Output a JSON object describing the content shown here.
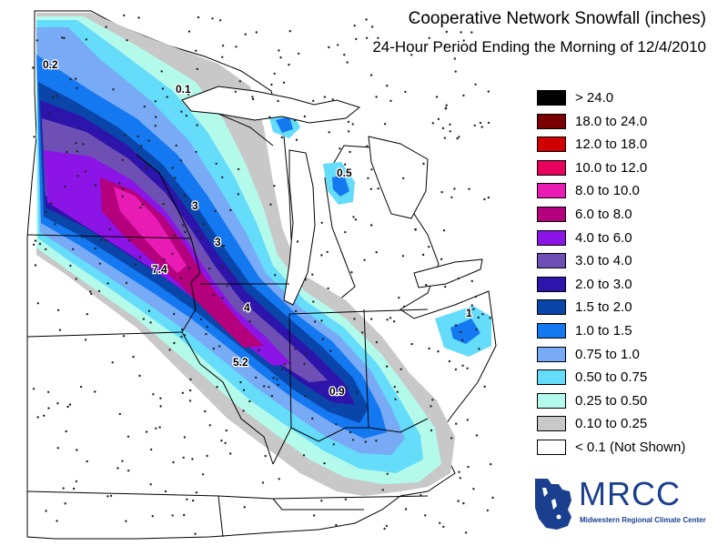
{
  "header": {
    "title": "Cooperative Network Snowfall (inches)",
    "subtitle": "24-Hour Period Ending the Morning of 12/4/2010"
  },
  "legend": {
    "items": [
      {
        "label": "> 24.0",
        "color": "#000000"
      },
      {
        "label": "18.0 to 24.0",
        "color": "#7a0000"
      },
      {
        "label": "12.0 to 18.0",
        "color": "#d10000"
      },
      {
        "label": "10.0 to 12.0",
        "color": "#e8005a"
      },
      {
        "label": "8.0 to 10.0",
        "color": "#e81cb4"
      },
      {
        "label": "6.0 to 8.0",
        "color": "#b4007d"
      },
      {
        "label": "4.0 to 6.0",
        "color": "#8c14e6"
      },
      {
        "label": "3.0 to 4.0",
        "color": "#6e50b4"
      },
      {
        "label": "2.0 to 3.0",
        "color": "#2d14aa"
      },
      {
        "label": "1.5 to 2.0",
        "color": "#0a46aa"
      },
      {
        "label": "1.0 to 1.5",
        "color": "#1478f0"
      },
      {
        "label": "0.75 to 1.0",
        "color": "#78aaf5"
      },
      {
        "label": "0.50 to 0.75",
        "color": "#64dcfa"
      },
      {
        "label": "0.25 to 0.50",
        "color": "#b4faeb"
      },
      {
        "label": "0.10 to 0.25",
        "color": "#c8c8c8"
      },
      {
        "label": "< 0.1 (Not Shown)",
        "color": "#ffffff"
      }
    ]
  },
  "map_labels": [
    {
      "text": "0.2"
    },
    {
      "text": "0.1"
    },
    {
      "text": "0.5"
    },
    {
      "text": "3"
    },
    {
      "text": "3"
    },
    {
      "text": "7.4"
    },
    {
      "text": "4"
    },
    {
      "text": "5.2"
    },
    {
      "text": "0.9"
    },
    {
      "text": "1"
    }
  ],
  "logo": {
    "name": "MRCC",
    "subtitle": "Midwestern Regional Climate Center"
  }
}
